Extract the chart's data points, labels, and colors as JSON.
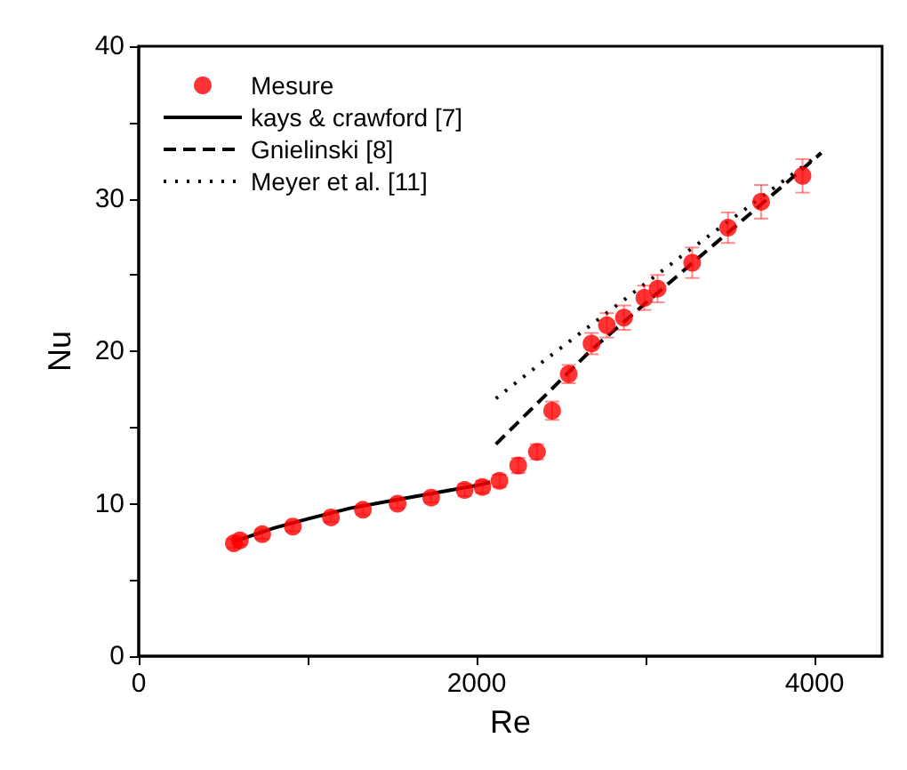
{
  "chart_data": {
    "type": "scatter",
    "xlabel": "Re",
    "ylabel": "Nu",
    "xlim": [
      0,
      4400
    ],
    "ylim": [
      0,
      40
    ],
    "xticks": [
      0,
      {
        "value": 1000,
        "label": null
      },
      2000,
      {
        "value": 3000,
        "label": null
      },
      4000
    ],
    "yticks": [
      0,
      {
        "value": 5,
        "label": null
      },
      10,
      {
        "value": 15,
        "label": null
      },
      20,
      {
        "value": 25,
        "label": null
      },
      30,
      {
        "value": 35,
        "label": null
      },
      40
    ],
    "grid": false,
    "legend": "top left",
    "series": [
      {
        "name": "Mesure",
        "marker": "circle",
        "color": "#ff0000",
        "x": [
          563,
          599,
          731,
          912,
          1138,
          1327,
          1532,
          1731,
          1929,
          2034,
          2135,
          2246,
          2357,
          2447,
          2545,
          2680,
          2771,
          2872,
          2993,
          3071,
          3276,
          3488,
          3684,
          3929
        ],
        "values": [
          7.4,
          7.6,
          8.0,
          8.5,
          9.1,
          9.6,
          10.0,
          10.4,
          10.9,
          11.1,
          11.5,
          12.5,
          13.4,
          16.1,
          18.5,
          20.5,
          21.7,
          22.2,
          23.5,
          24.1,
          25.8,
          28.1,
          29.8,
          31.5
        ],
        "errors": [
          0.3,
          0.3,
          0.3,
          0.3,
          0.3,
          0.3,
          0.3,
          0.3,
          0.4,
          0.4,
          0.4,
          0.5,
          0.5,
          0.6,
          0.6,
          0.7,
          0.8,
          0.8,
          0.8,
          0.9,
          1.0,
          1.0,
          1.1,
          1.1
        ]
      },
      {
        "name": "kays & crawford [7]",
        "type": "line",
        "line_style": "solid",
        "color": "#000000",
        "x": [
          560,
          800,
          1000,
          1250,
          1500,
          1750,
          2000,
          2080
        ],
        "values": [
          7.5,
          8.4,
          9.0,
          9.7,
          10.2,
          10.7,
          11.2,
          11.4
        ]
      },
      {
        "name": "Gnielinski [8]",
        "type": "line",
        "line_style": "dashed",
        "color": "#000000",
        "x": [
          2114,
          2680,
          3300,
          4040
        ],
        "values": [
          13.9,
          20.1,
          26.0,
          33.0
        ]
      },
      {
        "name": "Meyer et al. [11]",
        "type": "line",
        "line_style": "dotted",
        "color": "#000000",
        "x": [
          2114,
          2390,
          3232,
          4040
        ],
        "values": [
          16.9,
          19.3,
          26.4,
          33.0
        ]
      }
    ]
  }
}
